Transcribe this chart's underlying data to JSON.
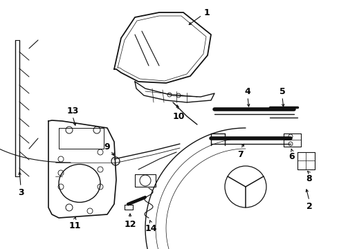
{
  "bg_color": "#ffffff",
  "line_color": "#111111",
  "label_color": "#000000",
  "fig_width": 4.9,
  "fig_height": 3.6,
  "dpi": 100
}
